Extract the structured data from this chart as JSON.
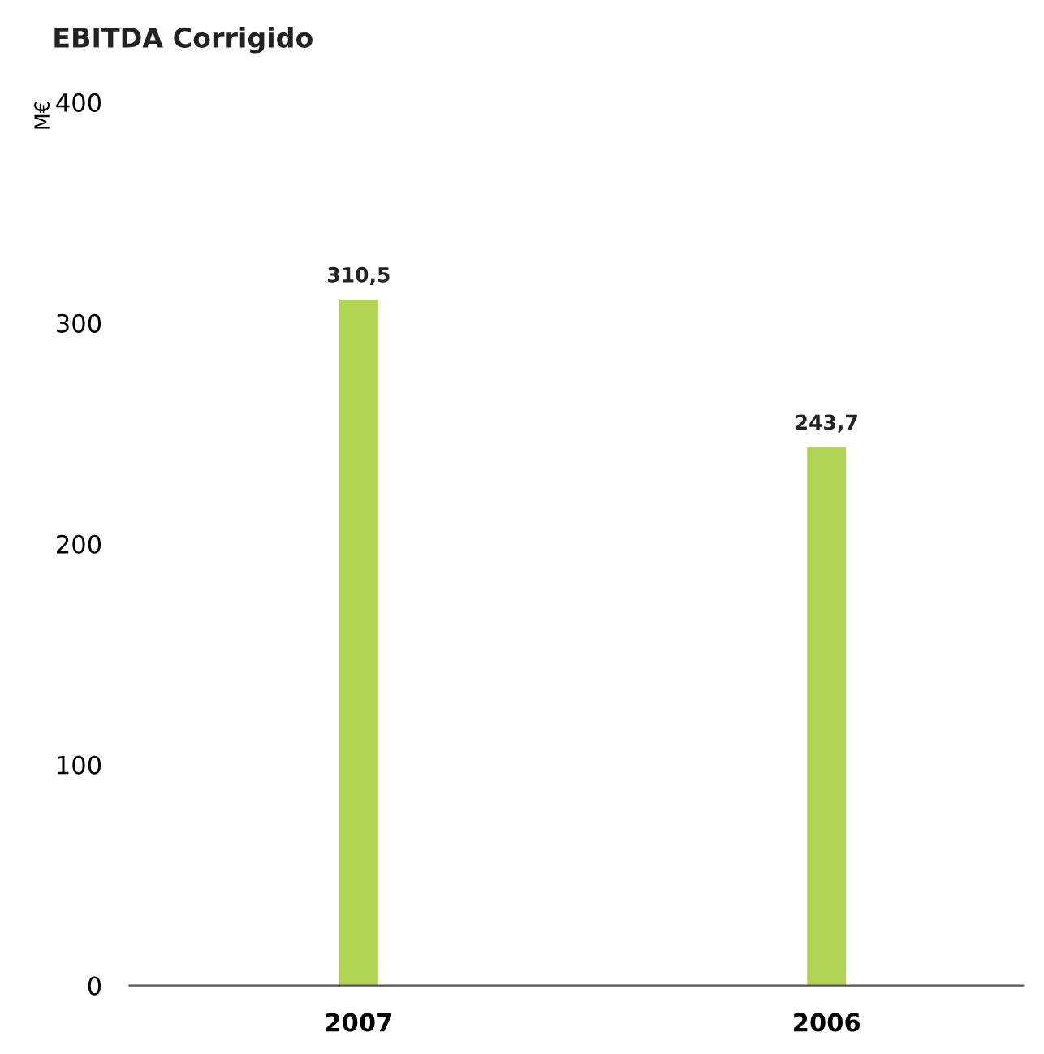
{
  "chart_data": {
    "type": "bar",
    "title": "EBITDA Corrigido",
    "ylabel": "M€",
    "categories": [
      "2007",
      "2006"
    ],
    "values": [
      310.5,
      243.7
    ],
    "value_labels": [
      "310,5",
      "243,7"
    ],
    "color": "#b1d352",
    "ylim": [
      0,
      400
    ],
    "yticks": [
      0,
      100,
      200,
      300,
      400
    ],
    "grid": false,
    "legend": false
  }
}
